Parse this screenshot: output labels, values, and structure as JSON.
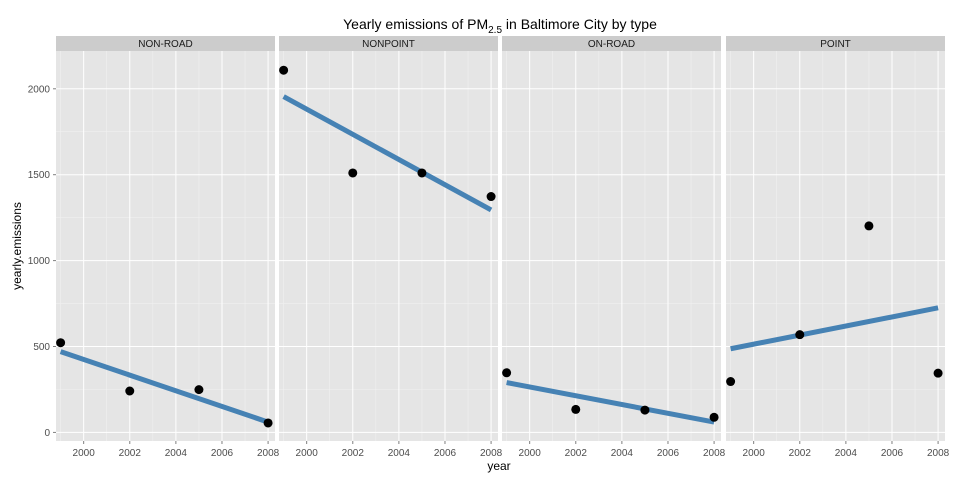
{
  "chart_data": {
    "type": "scatter",
    "title": {
      "prefix": "Yearly emissions of PM",
      "subscript": "2.5",
      "suffix": " in Baltimore City by type"
    },
    "xlabel": "year",
    "ylabel": "yearly.emissions",
    "xlim": [
      1998.8,
      2008.3
    ],
    "ylim": [
      -50,
      2220
    ],
    "x_ticks": [
      2000,
      2002,
      2004,
      2006,
      2008
    ],
    "y_ticks": [
      0,
      500,
      1000,
      1500,
      2000
    ],
    "grid": true,
    "legend": "none",
    "colors": {
      "panel_background": "#e5e5e5",
      "strip_background": "#cccccc",
      "grid": "#ffffff",
      "points": "#000000",
      "fit_line": "#4682b4"
    },
    "facets": [
      {
        "name": "NON-ROAD",
        "x": [
          1999,
          2002,
          2005,
          2008
        ],
        "y": [
          522,
          241,
          249,
          55
        ],
        "fit": {
          "x": [
            1999,
            2008
          ],
          "y": [
            470,
            60
          ]
        }
      },
      {
        "name": "NONPOINT",
        "x": [
          1999,
          2002,
          2005,
          2008
        ],
        "y": [
          2108,
          1510,
          1510,
          1373
        ],
        "fit": {
          "x": [
            1999,
            2008
          ],
          "y": [
            1955,
            1295
          ]
        }
      },
      {
        "name": "ON-ROAD",
        "x": [
          1999,
          2002,
          2005,
          2008
        ],
        "y": [
          347,
          134,
          130,
          88
        ],
        "fit": {
          "x": [
            1999,
            2008
          ],
          "y": [
            290,
            60
          ]
        }
      },
      {
        "name": "POINT",
        "x": [
          1999,
          2002,
          2005,
          2008
        ],
        "y": [
          296,
          569,
          1202,
          345
        ],
        "fit": {
          "x": [
            1999,
            2008
          ],
          "y": [
            487,
            725
          ]
        }
      }
    ]
  }
}
